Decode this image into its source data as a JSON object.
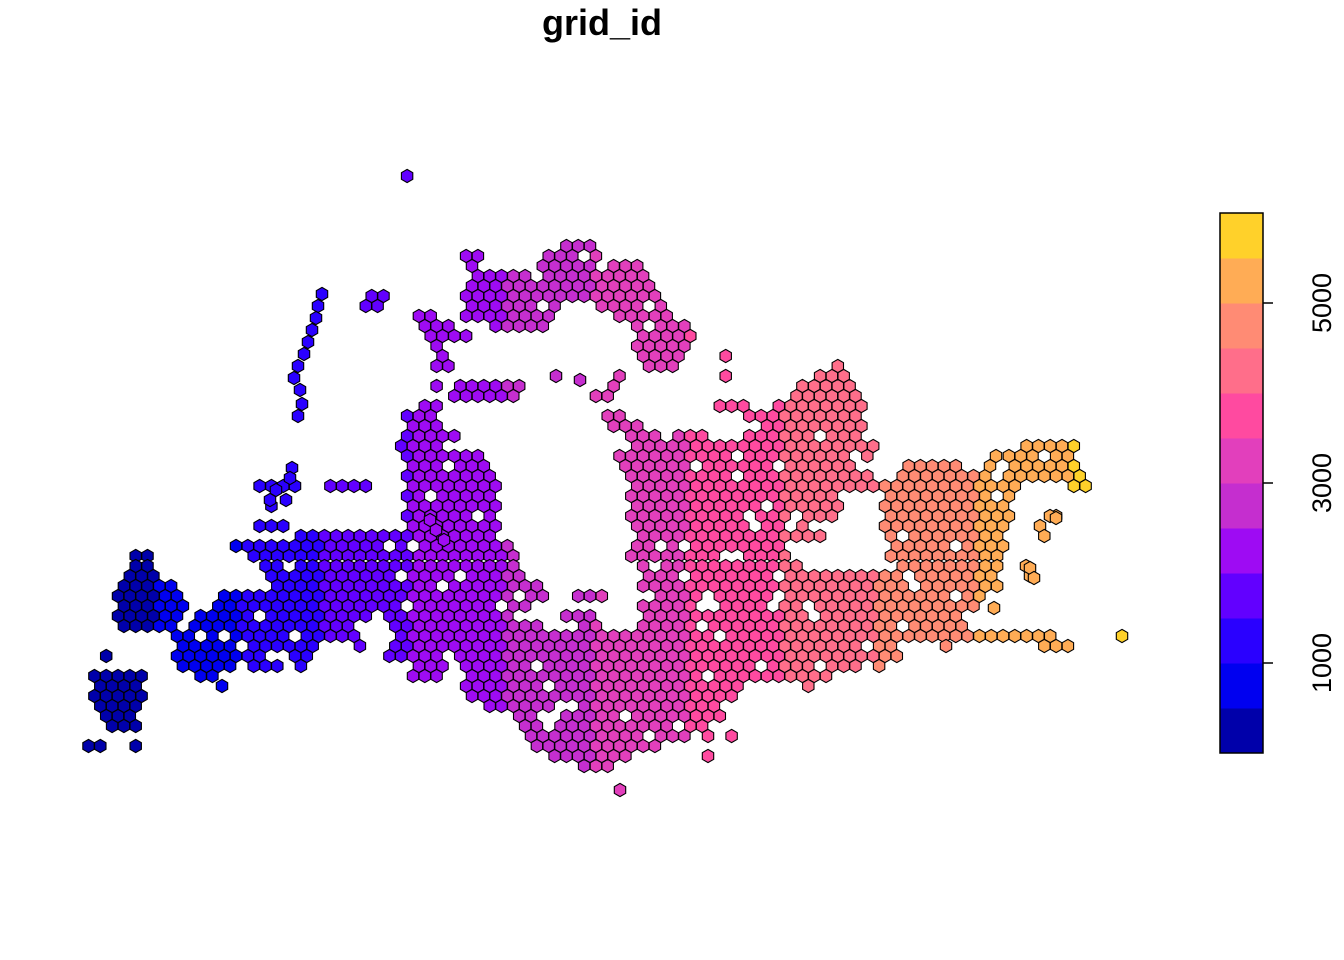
{
  "title": "grid_id",
  "legend": {
    "min": 0,
    "max": 6000,
    "breaks": [
      0,
      500,
      1000,
      1500,
      2000,
      2500,
      3000,
      3500,
      4000,
      4500,
      5000,
      5500,
      6000
    ],
    "colors": [
      "#0000AA",
      "#0000F0",
      "#2A00FF",
      "#6200FF",
      "#9E0BF3",
      "#C52ECF",
      "#E23FBC",
      "#FF4AA0",
      "#FF6E8A",
      "#FF8B74",
      "#FFAC55",
      "#FFD12A",
      "#FFFF00"
    ],
    "ticks": [
      {
        "value": 1000,
        "label": "1000"
      },
      {
        "value": 3000,
        "label": "3000"
      },
      {
        "value": 5000,
        "label": "5000"
      }
    ]
  },
  "map": {
    "hex_stroke": "#000000",
    "value_range": [
      1,
      5900
    ]
  }
}
